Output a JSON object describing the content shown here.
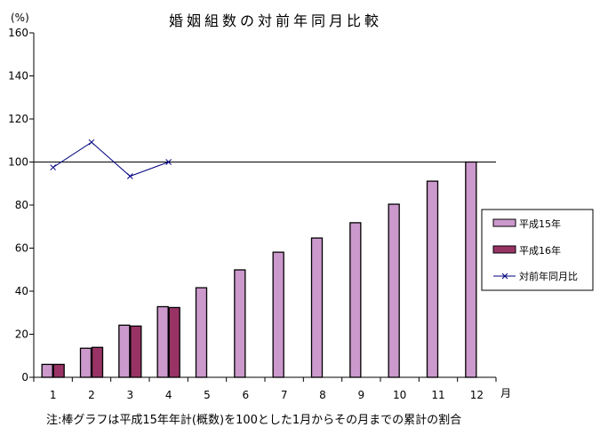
{
  "chart_data": {
    "type": "bar",
    "title": "婚姻組数の対前年同月比較",
    "ylabel": "(%)",
    "xlabel": "月",
    "note": "注:棒グラフは平成15年年計(概数)を100とした1月からその月までの累計の割合",
    "ylim": [
      0,
      160
    ],
    "yticks": [
      "0",
      "20",
      "40",
      "60",
      "80",
      "100",
      "120",
      "140",
      "160"
    ],
    "categories": [
      "1",
      "2",
      "3",
      "4",
      "5",
      "6",
      "7",
      "8",
      "9",
      "10",
      "11",
      "12"
    ],
    "reference_line": 100,
    "legend_position": "right",
    "series": [
      {
        "name": "平成15年",
        "type": "bar",
        "color": "#cc99cc",
        "values": [
          6.0,
          13.5,
          24.2,
          32.8,
          41.6,
          49.9,
          58.1,
          64.7,
          71.8,
          80.4,
          91.1,
          100
        ]
      },
      {
        "name": "平成16年",
        "type": "bar",
        "color": "#993366",
        "values": [
          6.0,
          13.9,
          23.8,
          32.4,
          null,
          null,
          null,
          null,
          null,
          null,
          null,
          null
        ]
      },
      {
        "name": "対前年同月比",
        "type": "line",
        "color": "#000080",
        "values": [
          97.5,
          109.2,
          93.4,
          100.0,
          null,
          null,
          null,
          null,
          null,
          null,
          null,
          null
        ]
      }
    ]
  }
}
